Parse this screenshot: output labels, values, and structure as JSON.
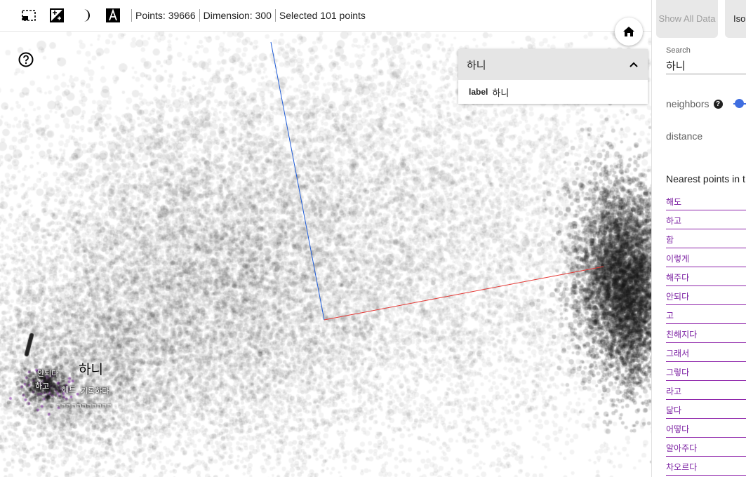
{
  "toolbar": {
    "icons": [
      "select-box-icon",
      "night-mode-icon",
      "label-icon",
      "color-edit-icon"
    ],
    "points": "Points: 39666",
    "dimension": "Dimension: 300",
    "selected": "Selected 101 points"
  },
  "info_card": {
    "title": "하니",
    "field_label": "label",
    "field_value": "하니"
  },
  "annotations": {
    "main": "하니",
    "labels": [
      "얀되다",
      "하고",
      "헤트",
      "기록하다",
      "ㅋㅋㅋㅋㅋㅋㅋㅋㅋㅋㅋ"
    ]
  },
  "panel": {
    "show_all": "Show All Data",
    "isolate": "Iso…",
    "search_label": "Search",
    "search_value": "하니",
    "neighbors_label": "neighbors",
    "help_glyph": "?",
    "distance_label": "distance",
    "nearest_title": "Nearest points in t",
    "nearest": [
      "해도",
      "하고",
      "함",
      "이렇게",
      "해주다",
      "안되다",
      "고",
      "친해지다",
      "그래서",
      "그렇다",
      "라고",
      "닮다",
      "어떻다",
      "알아주다",
      "차오르다"
    ]
  },
  "colors": {
    "accent": "#3f6ee0",
    "neighbor_link": "#7b1fa2",
    "axis_x": "#e53935",
    "axis_y": "#1e5bd6",
    "axis_z": "#f57c00"
  }
}
